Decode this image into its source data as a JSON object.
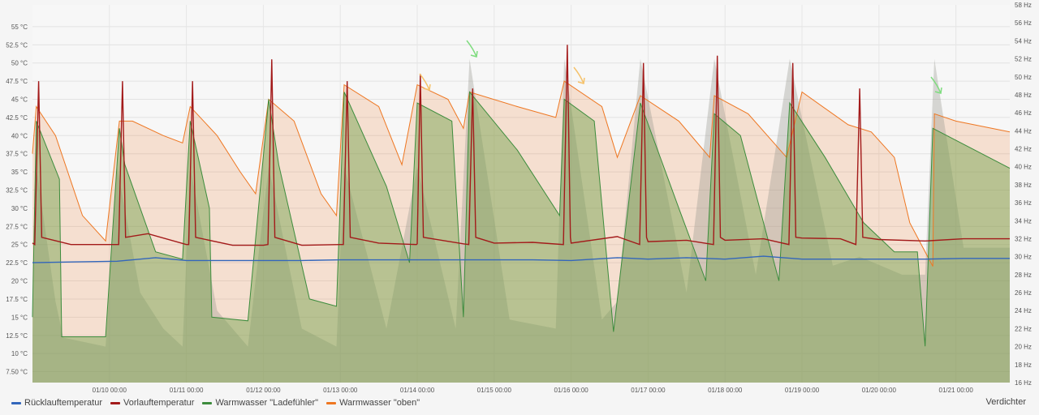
{
  "chart_data": {
    "type": "area",
    "grid": true,
    "legend_position": "bottom",
    "left_axis": {
      "unit": "°C",
      "ylim": [
        6,
        58
      ],
      "ticks": [
        "7.50 °C",
        "10 °C",
        "12.5 °C",
        "15 °C",
        "17.5 °C",
        "20 °C",
        "22.5 °C",
        "25 °C",
        "27.5 °C",
        "30 °C",
        "32.5 °C",
        "35 °C",
        "37.5 °C",
        "40 °C",
        "42.5 °C",
        "45 °C",
        "47.5 °C",
        "50 °C",
        "52.5 °C",
        "55 °C"
      ]
    },
    "right_axis": {
      "unit": "Hz",
      "ylim": [
        16,
        58
      ],
      "ticks": [
        "16 Hz",
        "18 Hz",
        "20 Hz",
        "22 Hz",
        "24 Hz",
        "26 Hz",
        "28 Hz",
        "30 Hz",
        "32 Hz",
        "34 Hz",
        "36 Hz",
        "38 Hz",
        "40 Hz",
        "42 Hz",
        "44 Hz",
        "46 Hz",
        "48 Hz",
        "50 Hz",
        "52 Hz",
        "54 Hz",
        "56 Hz",
        "58 Hz"
      ]
    },
    "x_range": [
      9.0,
      21.7
    ],
    "x_ticks": [
      {
        "t": 10.0,
        "label": "01/10 00:00"
      },
      {
        "t": 11.0,
        "label": "01/11 00:00"
      },
      {
        "t": 12.0,
        "label": "01/12 00:00"
      },
      {
        "t": 13.0,
        "label": "01/13 00:00"
      },
      {
        "t": 14.0,
        "label": "01/14 00:00"
      },
      {
        "t": 15.0,
        "label": "01/15 00:00"
      },
      {
        "t": 16.0,
        "label": "01/16 00:00"
      },
      {
        "t": 17.0,
        "label": "01/17 00:00"
      },
      {
        "t": 18.0,
        "label": "01/18 00:00"
      },
      {
        "t": 19.0,
        "label": "01/19 00:00"
      },
      {
        "t": 20.0,
        "label": "01/20 00:00"
      },
      {
        "t": 21.0,
        "label": "01/21 00:00"
      }
    ],
    "heating_cycles_start": [
      9.04,
      10.13,
      11.04,
      12.07,
      13.05,
      14.0,
      14.68,
      15.91,
      16.9,
      17.86,
      18.84,
      19.71
    ],
    "series": [
      {
        "name": "Rücklauftemperatur",
        "color": "#3366bb",
        "axis": "left",
        "x": [
          9.0,
          9.5,
          10.1,
          10.6,
          11.0,
          11.6,
          12.0,
          12.5,
          13.0,
          13.5,
          14.0,
          14.6,
          15.0,
          15.5,
          16.0,
          16.6,
          17.0,
          17.5,
          18.0,
          18.5,
          19.0,
          19.5,
          20.0,
          20.6,
          21.1,
          21.7
        ],
        "values": [
          22.5,
          22.6,
          22.7,
          23.2,
          22.8,
          22.8,
          22.8,
          22.8,
          22.9,
          22.9,
          22.9,
          22.9,
          22.9,
          22.9,
          22.8,
          23.2,
          23.0,
          23.2,
          23.0,
          23.4,
          23.0,
          23.0,
          23.0,
          23.0,
          23.1,
          23.1
        ]
      },
      {
        "name": "Vorlauftemperatur",
        "color": "#a31a1a",
        "axis": "left",
        "x": [
          9.0,
          9.5,
          10.1,
          10.5,
          11.0,
          11.6,
          12.0,
          12.5,
          13.0,
          13.5,
          14.0,
          14.6,
          15.0,
          15.5,
          16.0,
          16.6,
          17.0,
          17.5,
          18.0,
          18.5,
          19.0,
          19.5,
          20.0,
          20.6,
          21.1,
          21.7
        ],
        "values": [
          25.2,
          25.0,
          25.0,
          26.5,
          25.0,
          24.9,
          24.9,
          24.9,
          25.0,
          25.2,
          25.1,
          25.1,
          25.2,
          25.3,
          25.2,
          26.1,
          25.4,
          25.6,
          25.6,
          25.8,
          25.9,
          25.8,
          25.7,
          25.5,
          25.8,
          25.8
        ],
        "peaks": [
          47.5,
          47.5,
          47.5,
          50.5,
          47.5,
          48.5,
          46.5,
          52.5,
          50.0,
          51.0,
          50.0,
          46.5
        ]
      },
      {
        "name": "Warmwasser \"Ladefühler\"",
        "color": "#3d8c3d",
        "axis": "left",
        "x": [
          9.0,
          9.05,
          9.35,
          9.38,
          9.95,
          10.13,
          10.2,
          10.6,
          10.95,
          11.05,
          11.3,
          11.33,
          11.8,
          12.07,
          12.2,
          12.6,
          12.95,
          13.05,
          13.6,
          13.9,
          14.0,
          14.45,
          14.6,
          14.68,
          15.3,
          15.85,
          15.91,
          16.3,
          16.55,
          16.9,
          17.4,
          17.75,
          17.86,
          18.2,
          18.7,
          18.84,
          19.3,
          19.8,
          20.2,
          20.5,
          20.6,
          20.7,
          21.7
        ],
        "values": [
          15,
          42,
          34,
          12.3,
          12.3,
          41,
          36,
          24,
          23,
          42,
          30,
          15,
          14.5,
          45,
          36,
          17.5,
          16.5,
          46,
          33,
          22.5,
          44.5,
          42,
          15,
          46,
          38,
          29,
          45,
          42,
          13,
          44.5,
          30,
          20,
          43,
          40,
          20,
          44.5,
          37,
          28,
          24,
          24,
          11,
          41,
          35.5
        ]
      },
      {
        "name": "Warmwasser \"oben\"",
        "color": "#ee7722",
        "axis": "left",
        "x": [
          9.0,
          9.05,
          9.3,
          9.65,
          9.95,
          10.13,
          10.3,
          10.7,
          10.95,
          11.05,
          11.4,
          11.7,
          11.9,
          12.07,
          12.4,
          12.75,
          12.95,
          13.05,
          13.5,
          13.8,
          14.0,
          14.4,
          14.6,
          14.68,
          15.3,
          15.8,
          15.91,
          16.4,
          16.6,
          16.9,
          17.4,
          17.8,
          17.86,
          18.3,
          18.8,
          19.0,
          19.6,
          19.9,
          20.2,
          20.4,
          20.7,
          20.72,
          21.0,
          21.7
        ],
        "values": [
          37.5,
          44,
          40,
          29,
          25.5,
          42,
          42,
          40,
          39,
          44,
          40,
          35,
          32,
          45,
          42,
          32,
          29,
          47,
          44,
          36,
          47,
          45,
          41,
          46,
          44,
          42.5,
          47.5,
          44,
          37,
          45.5,
          42,
          37,
          45.5,
          43,
          37,
          46,
          41.5,
          40.5,
          37,
          28,
          22,
          43,
          42,
          40.5
        ]
      },
      {
        "name": "Verdichter",
        "color": "#9aa08a",
        "axis": "right",
        "x": [
          9.0,
          9.05,
          9.3,
          9.4,
          9.95,
          10.1,
          10.4,
          10.7,
          10.95,
          11.05,
          11.4,
          11.8,
          12.07,
          12.5,
          12.95,
          13.05,
          13.6,
          14.0,
          14.5,
          14.68,
          15.2,
          15.8,
          15.91,
          16.4,
          16.6,
          16.9,
          17.5,
          17.86,
          18.4,
          18.84,
          19.4,
          19.75,
          20.3,
          20.6,
          20.72,
          21.1,
          21.7
        ],
        "values": [
          20,
          40,
          25,
          21,
          20,
          40,
          26,
          22,
          20,
          40,
          24,
          20,
          40,
          22,
          20,
          40,
          22,
          40,
          22,
          52,
          23,
          22,
          52,
          23,
          25,
          52,
          26,
          52,
          28,
          52,
          29,
          30,
          28,
          28,
          52,
          31,
          31
        ]
      }
    ],
    "right_axis_label": "Verdichter"
  }
}
